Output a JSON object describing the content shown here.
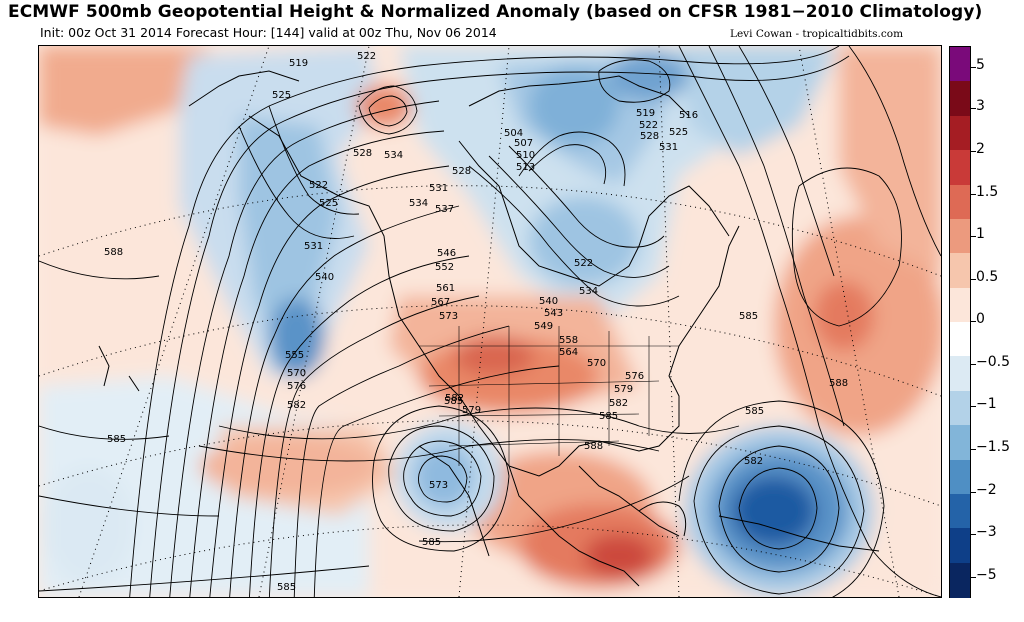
{
  "header": {
    "title": "ECMWF 500mb Geopotential Height & Normalized Anomaly (based on CFSR 1981−2010 Climatology)",
    "subtitle": "Init: 00z Oct 31 2014 Forecast Hour: [144] valid at 00z Thu, Nov 06 2014",
    "credit": "Levi Cowan - tropicaltidbits.com"
  },
  "colors": {
    "ocean_base": "#fbe9df",
    "land_line": "#000000",
    "grid_line": "#000000"
  },
  "legend": {
    "labels": [
      "5",
      "3",
      "2",
      "1.5",
      "1",
      "0.5",
      "0",
      "−0.5",
      "−1",
      "−1.5",
      "−2",
      "−3",
      "−5"
    ],
    "colors": [
      "#7a0a7a",
      "#7a0a18",
      "#a51d23",
      "#c93a38",
      "#de6a55",
      "#ec9a7e",
      "#f6c6ad",
      "#fce6da",
      "#ffffff",
      "#dceaf3",
      "#b3d2e8",
      "#82b5d9",
      "#4f8fc4",
      "#2463a8",
      "#0e3f88",
      "#0a2660"
    ]
  },
  "contour_labels": [
    {
      "text": "522"
    },
    {
      "text": "519"
    },
    {
      "text": "525"
    },
    {
      "text": "528"
    },
    {
      "text": "534"
    },
    {
      "text": "522"
    },
    {
      "text": "525"
    },
    {
      "text": "531"
    },
    {
      "text": "534"
    },
    {
      "text": "537"
    },
    {
      "text": "528"
    },
    {
      "text": "531"
    },
    {
      "text": "540"
    },
    {
      "text": "588"
    },
    {
      "text": "546"
    },
    {
      "text": "552"
    },
    {
      "text": "561"
    },
    {
      "text": "567"
    },
    {
      "text": "573"
    },
    {
      "text": "555"
    },
    {
      "text": "570"
    },
    {
      "text": "576"
    },
    {
      "text": "582"
    },
    {
      "text": "585"
    },
    {
      "text": "582"
    },
    {
      "text": "579"
    },
    {
      "text": "573"
    },
    {
      "text": "585"
    },
    {
      "text": "585"
    },
    {
      "text": "504"
    },
    {
      "text": "507"
    },
    {
      "text": "510"
    },
    {
      "text": "513"
    },
    {
      "text": "522"
    },
    {
      "text": "534"
    },
    {
      "text": "540"
    },
    {
      "text": "543"
    },
    {
      "text": "549"
    },
    {
      "text": "558"
    },
    {
      "text": "564"
    },
    {
      "text": "570"
    },
    {
      "text": "576"
    },
    {
      "text": "579"
    },
    {
      "text": "582"
    },
    {
      "text": "585"
    },
    {
      "text": "588"
    },
    {
      "text": "519"
    },
    {
      "text": "516"
    },
    {
      "text": "522"
    },
    {
      "text": "525"
    },
    {
      "text": "528"
    },
    {
      "text": "531"
    },
    {
      "text": "585"
    },
    {
      "text": "588"
    },
    {
      "text": "585"
    },
    {
      "text": "582"
    },
    {
      "text": "585"
    }
  ]
}
